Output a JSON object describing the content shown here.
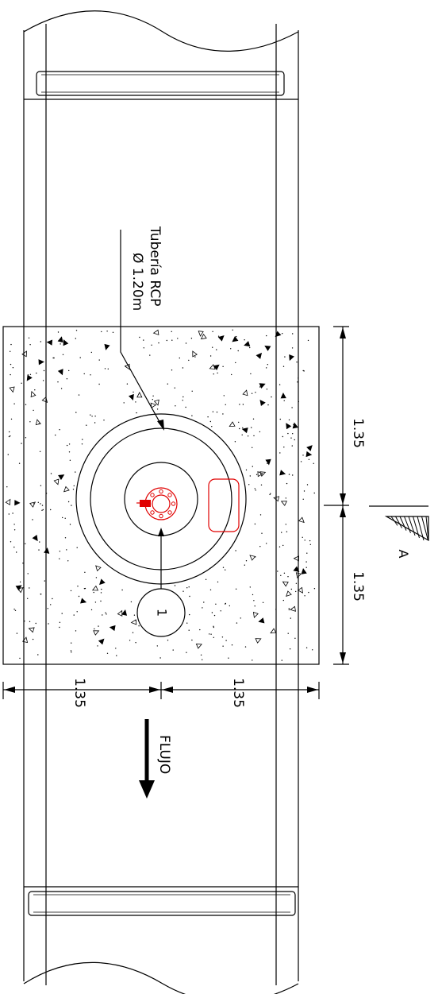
{
  "pipe_label": {
    "line1": "Tubería RCP",
    "line2": "Ø 1.20m"
  },
  "dimensions": {
    "right_top": "1.35",
    "right_bottom": "1.35",
    "bottom_left": "1.35",
    "bottom_right": "1.35"
  },
  "section_marker": "A",
  "callout_number": "1",
  "flow_label": "FLUJO",
  "colors": {
    "line": "#000000",
    "fixture": "#e00000"
  }
}
